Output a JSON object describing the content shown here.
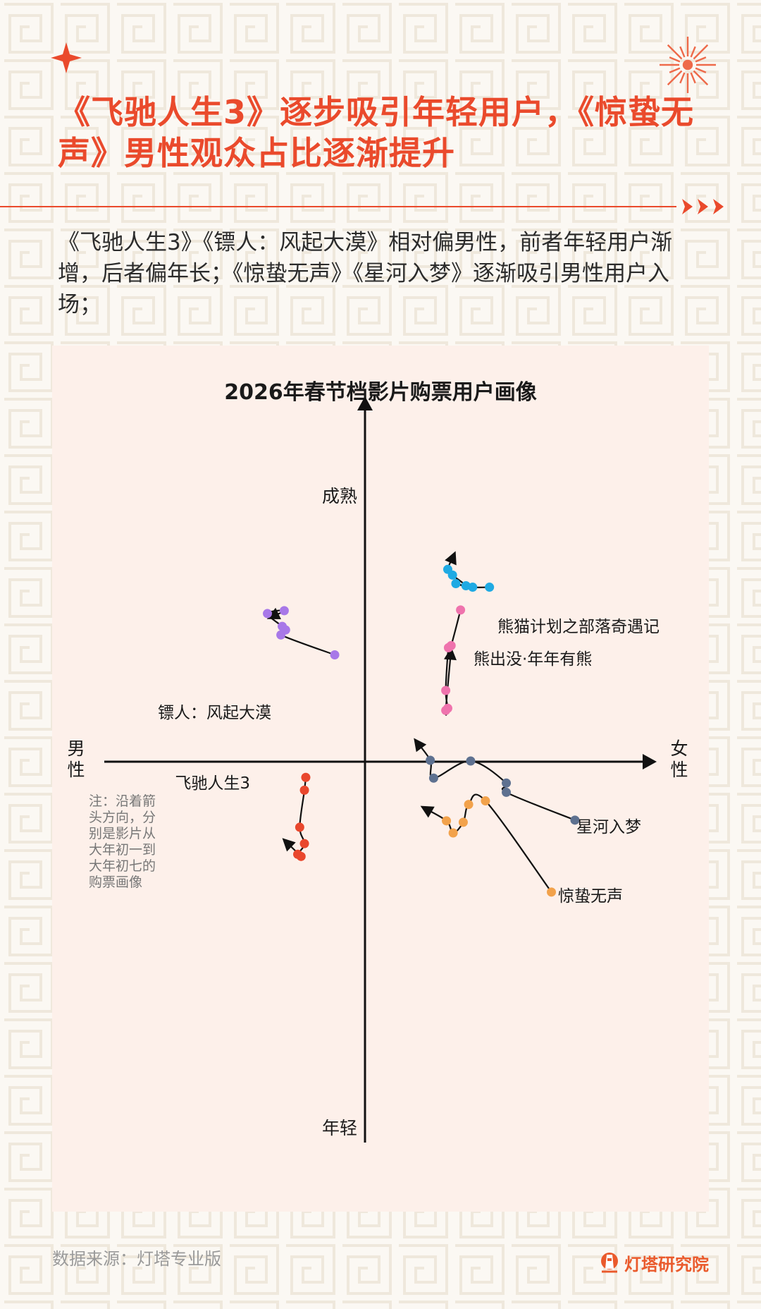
{
  "header": {
    "title": "《飞驰人生3》逐步吸引年轻用户，《惊蛰无声》男性观众占比逐渐提升",
    "subtitle": "《飞驰人生3》《镖人：风起大漠》相对偏男性，前者年轻用户渐增，后者偏年长；《惊蛰无声》《星河入梦》逐渐吸引男性用户入场；"
  },
  "chart_data": {
    "type": "scatter",
    "title": "2026年春节档影片购票用户画像",
    "axes": {
      "x_negative_label": "男性",
      "x_positive_label": "女性",
      "y_positive_label": "成熟",
      "y_negative_label": "年轻"
    },
    "xlim": [
      -3.9,
      4.2
    ],
    "ylim": [
      -5.7,
      4.5
    ],
    "note": "注：沿着箭头方向，分别是影片从大年初一到大年初七的购票画像",
    "series": [
      {
        "name": "飞驰人生3",
        "color": "#e9472d",
        "points": [
          [
            -0.88,
            -0.22
          ],
          [
            -0.9,
            -0.4
          ],
          [
            -0.97,
            -0.92
          ],
          [
            -0.9,
            -1.15
          ],
          [
            -1.0,
            -1.3
          ],
          [
            -0.95,
            -1.33
          ],
          [
            -1.2,
            -1.1
          ]
        ]
      },
      {
        "name": "镖人：风起大漠",
        "color": "#a878e8",
        "points": [
          [
            -0.45,
            1.5
          ],
          [
            -1.25,
            1.78
          ],
          [
            -1.18,
            1.85
          ],
          [
            -1.23,
            1.9
          ],
          [
            -1.45,
            2.08
          ],
          [
            -1.2,
            2.12
          ],
          [
            -1.42,
            2.02
          ]
        ]
      },
      {
        "name": "熊猫计划之部落奇遇记",
        "color": "#1faae3",
        "points": [
          [
            1.85,
            2.45
          ],
          [
            1.6,
            2.45
          ],
          [
            1.35,
            2.5
          ],
          [
            1.5,
            2.47
          ],
          [
            1.3,
            2.62
          ],
          [
            1.23,
            2.7
          ],
          [
            1.33,
            2.92
          ]
        ]
      },
      {
        "name": "熊出没·年年有熊",
        "color": "#ef73ad",
        "points": [
          [
            1.42,
            2.13
          ],
          [
            1.28,
            1.63
          ],
          [
            1.24,
            1.6
          ],
          [
            1.2,
            1.0
          ],
          [
            1.23,
            0.75
          ],
          [
            1.2,
            0.72
          ],
          [
            1.28,
            1.57
          ]
        ]
      },
      {
        "name": "星河入梦",
        "color": "#5e7190",
        "points": [
          [
            3.12,
            -0.82
          ],
          [
            2.1,
            -0.43
          ],
          [
            2.1,
            -0.3
          ],
          [
            1.57,
            0.01
          ],
          [
            1.02,
            -0.23
          ],
          [
            0.97,
            0.02
          ],
          [
            0.75,
            0.3
          ]
        ]
      },
      {
        "name": "惊蛰无声",
        "color": "#f2a24b",
        "points": [
          [
            2.77,
            -1.83
          ],
          [
            1.79,
            -0.55
          ],
          [
            1.54,
            -0.6
          ],
          [
            1.46,
            -0.85
          ],
          [
            1.31,
            -1.0
          ],
          [
            1.21,
            -0.83
          ],
          [
            0.86,
            -0.64
          ]
        ]
      }
    ]
  },
  "footer": {
    "source": "数据来源：灯塔专业版",
    "brand": "灯塔研究院"
  }
}
